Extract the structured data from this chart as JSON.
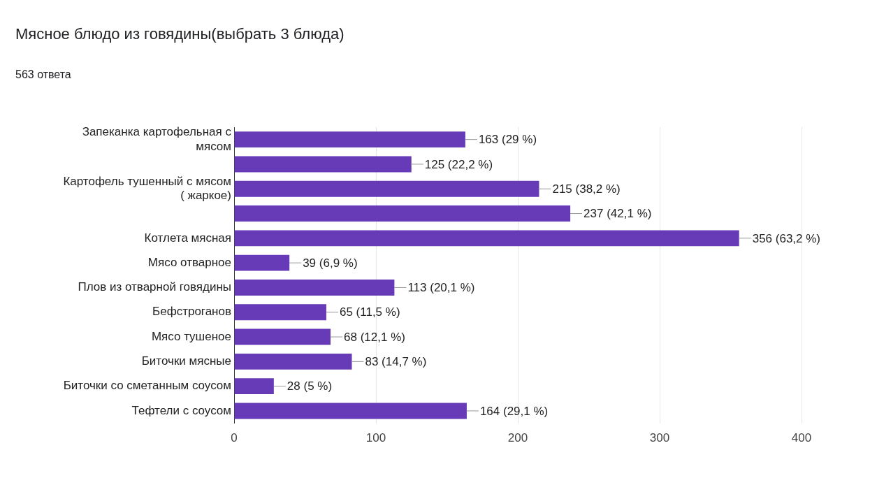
{
  "chart_data": {
    "type": "bar",
    "orientation": "horizontal",
    "title": "Мясное блюдо из говядины(выбрать 3 блюда)",
    "subtitle": "563 ответа",
    "categories": [
      "Запеканка картофельная с мясом",
      null,
      "Картофель тушенный с мясом ( жаркое)",
      null,
      "Котлета мясная",
      "Мясо отварное",
      "Плов из отварной говядины",
      "Бефстроганов",
      "Мясо тушеное",
      "Биточки мясные",
      "Биточки со сметанным соусом",
      "Тефтели с соусом"
    ],
    "values": [
      163,
      125,
      215,
      237,
      356,
      39,
      113,
      65,
      68,
      83,
      28,
      164
    ],
    "value_labels": [
      "163 (29 %)",
      "125 (22,2 %)",
      "215 (38,2 %)",
      "237 (42,1 %)",
      "356 (63,2 %)",
      "39 (6,9 %)",
      "113 (20,1 %)",
      "65 (11,5 %)",
      "68 (12,1 %)",
      "83 (14,7 %)",
      "28 (5 %)",
      "164 (29,1 %)"
    ],
    "color": "#673ab7",
    "xlim": [
      0,
      400
    ],
    "xticks": [
      0,
      100,
      200,
      300,
      400
    ],
    "grid": "x",
    "legend": false
  }
}
